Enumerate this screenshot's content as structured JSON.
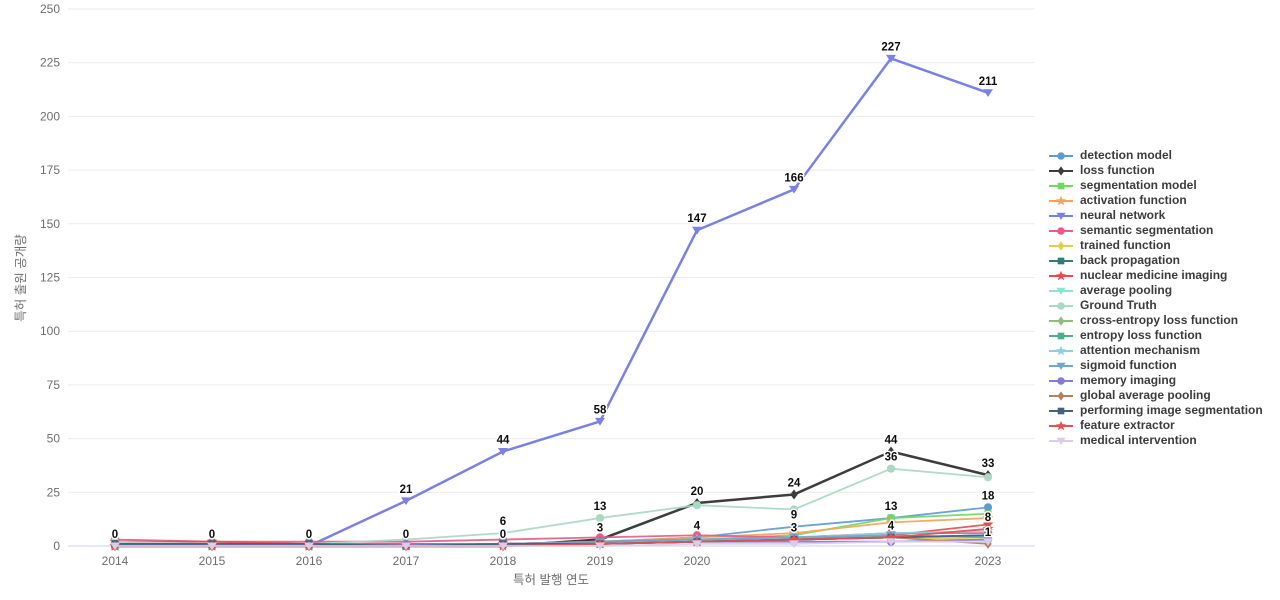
{
  "chart_data": {
    "type": "line",
    "title": "",
    "xlabel": "특허 발행 연도",
    "ylabel": "특허 출원 공개량",
    "x": [
      2014,
      2015,
      2016,
      2017,
      2018,
      2019,
      2020,
      2021,
      2022,
      2023
    ],
    "ylim": [
      0,
      250
    ],
    "yticks": [
      0,
      25,
      50,
      75,
      100,
      125,
      150,
      175,
      200,
      225,
      250
    ],
    "grid": true,
    "legend_position": "right",
    "colors": {
      "gridline": "#ebebeb",
      "zeroline": "#c9d6ea",
      "tick_text": "#6e6e6e",
      "point_label_text": "#0d0d0d",
      "legend_text": "#3c3c3c",
      "background": "#ffffff"
    },
    "series": [
      {
        "name": "detection model",
        "color": "#5c9cd6",
        "marker": "circle",
        "values": [
          0,
          0,
          0,
          0,
          1,
          2,
          4,
          9,
          13,
          18
        ],
        "point_labels": {
          "2020": 4,
          "2021": 9,
          "2023": 18
        }
      },
      {
        "name": "loss function",
        "color": "#3d3d3d",
        "marker": "diamond",
        "values": [
          0,
          0,
          0,
          0,
          0,
          3,
          20,
          24,
          44,
          33
        ],
        "point_labels": {
          "2017": 0,
          "2018": 0,
          "2019": 3,
          "2020": 20,
          "2021": 24,
          "2022": 44,
          "2023": 33
        }
      },
      {
        "name": "segmentation model",
        "color": "#6fd95f",
        "marker": "square",
        "values": [
          0,
          0,
          0,
          0,
          1,
          2,
          3,
          5,
          13,
          15
        ],
        "point_labels": {
          "2022": 13
        }
      },
      {
        "name": "activation function",
        "color": "#f5a455",
        "marker": "star",
        "values": [
          0,
          0,
          0,
          1,
          1,
          2,
          4,
          6,
          11,
          13
        ],
        "point_labels": {}
      },
      {
        "name": "neural network",
        "color": "#7b81e4",
        "marker": "triangle-down",
        "values": [
          0,
          0,
          0,
          21,
          44,
          58,
          147,
          166,
          227,
          211
        ],
        "point_labels": {
          "2014": 0,
          "2015": 0,
          "2016": 0,
          "2017": 21,
          "2018": 44,
          "2019": 58,
          "2020": 147,
          "2021": 166,
          "2022": 227,
          "2023": 211
        }
      },
      {
        "name": "semantic segmentation",
        "color": "#e85c85",
        "marker": "circle",
        "values": [
          3,
          2,
          2,
          2,
          3,
          4,
          5,
          4,
          6,
          6
        ],
        "point_labels": {}
      },
      {
        "name": "trained function",
        "color": "#e3cc50",
        "marker": "diamond",
        "values": [
          0,
          0,
          0,
          1,
          1,
          1,
          2,
          3,
          4,
          3
        ],
        "point_labels": {}
      },
      {
        "name": "back propagation",
        "color": "#2e7f78",
        "marker": "square",
        "values": [
          1,
          1,
          1,
          1,
          1,
          2,
          3,
          3,
          4,
          5
        ],
        "point_labels": {
          "2021": 3
        }
      },
      {
        "name": "nuclear medicine imaging",
        "color": "#e54d4d",
        "marker": "star",
        "values": [
          2,
          2,
          1,
          1,
          1,
          2,
          2,
          3,
          5,
          10
        ],
        "point_labels": {}
      },
      {
        "name": "average pooling",
        "color": "#8fe3d4",
        "marker": "triangle-down",
        "values": [
          0,
          0,
          0,
          0,
          1,
          1,
          3,
          3,
          4,
          5
        ],
        "point_labels": {}
      },
      {
        "name": "Ground Truth",
        "color": "#abd8c2",
        "marker": "circle",
        "values": [
          2,
          1,
          1,
          3,
          6,
          13,
          19,
          17,
          36,
          32
        ],
        "point_labels": {
          "2018": 6,
          "2019": 13,
          "2022": 36
        }
      },
      {
        "name": "cross-entropy loss function",
        "color": "#93bb7c",
        "marker": "diamond",
        "values": [
          0,
          0,
          0,
          0,
          1,
          1,
          2,
          3,
          5,
          4
        ],
        "point_labels": {}
      },
      {
        "name": "entropy loss function",
        "color": "#4fad8a",
        "marker": "square",
        "values": [
          0,
          0,
          0,
          0,
          1,
          1,
          2,
          3,
          4,
          5
        ],
        "point_labels": {}
      },
      {
        "name": "attention mechanism",
        "color": "#8ad0e5",
        "marker": "star",
        "values": [
          0,
          0,
          0,
          0,
          0,
          1,
          3,
          4,
          6,
          7
        ],
        "point_labels": {}
      },
      {
        "name": "sigmoid function",
        "color": "#72a6cf",
        "marker": "triangle-down",
        "values": [
          0,
          0,
          0,
          0,
          1,
          2,
          3,
          4,
          5,
          4
        ],
        "point_labels": {}
      },
      {
        "name": "memory imaging",
        "color": "#8779df",
        "marker": "circle",
        "values": [
          1,
          1,
          1,
          1,
          1,
          1,
          2,
          2,
          2,
          3
        ],
        "point_labels": {}
      },
      {
        "name": "global average pooling",
        "color": "#b3805f",
        "marker": "diamond",
        "values": [
          0,
          0,
          0,
          0,
          0,
          1,
          2,
          3,
          4,
          1
        ],
        "point_labels": {
          "2023": 1
        }
      },
      {
        "name": "performing image segmentation",
        "color": "#41617f",
        "marker": "square",
        "values": [
          1,
          1,
          1,
          0,
          1,
          1,
          2,
          3,
          4,
          5
        ],
        "point_labels": {}
      },
      {
        "name": "feature extractor",
        "color": "#e25252",
        "marker": "star",
        "values": [
          0,
          0,
          0,
          0,
          0,
          1,
          2,
          3,
          4,
          8
        ],
        "point_labels": {
          "2022": 4,
          "2023": 8
        }
      },
      {
        "name": "medical intervention",
        "color": "#dbcde8",
        "marker": "triangle-down",
        "values": [
          0,
          0,
          0,
          0,
          0,
          0,
          1,
          1,
          2,
          2
        ],
        "point_labels": {}
      }
    ]
  }
}
